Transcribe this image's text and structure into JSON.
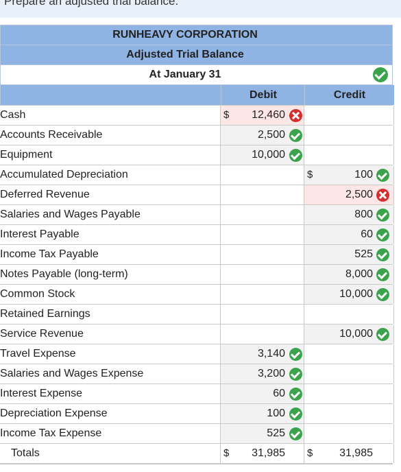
{
  "instruction": "Prepare an adjusted trial balance.",
  "header": {
    "company": "RUNHEAVY CORPORATION",
    "report": "Adjusted Trial Balance",
    "date": "At January 31"
  },
  "columns": {
    "debit": "Debit",
    "credit": "Credit"
  },
  "currency_symbol": "$",
  "rows": [
    {
      "account": "Cash",
      "debit": "12,460",
      "debit_status": "incorrect",
      "credit": "",
      "credit_status": ""
    },
    {
      "account": "Accounts Receivable",
      "debit": "2,500",
      "debit_status": "correct",
      "credit": "",
      "credit_status": ""
    },
    {
      "account": "Equipment",
      "debit": "10,000",
      "debit_status": "correct",
      "credit": "",
      "credit_status": ""
    },
    {
      "account": "Accumulated Depreciation",
      "debit": "",
      "debit_status": "",
      "credit": "100",
      "credit_status": "correct"
    },
    {
      "account": "Deferred Revenue",
      "debit": "",
      "debit_status": "",
      "credit": "2,500",
      "credit_status": "incorrect"
    },
    {
      "account": "Salaries and Wages Payable",
      "debit": "",
      "debit_status": "",
      "credit": "800",
      "credit_status": "correct"
    },
    {
      "account": "Interest Payable",
      "debit": "",
      "debit_status": "",
      "credit": "60",
      "credit_status": "correct"
    },
    {
      "account": "Income Tax Payable",
      "debit": "",
      "debit_status": "",
      "credit": "525",
      "credit_status": "correct"
    },
    {
      "account": "Notes Payable (long-term)",
      "debit": "",
      "debit_status": "",
      "credit": "8,000",
      "credit_status": "correct"
    },
    {
      "account": "Common Stock",
      "debit": "",
      "debit_status": "",
      "credit": "10,000",
      "credit_status": "correct"
    },
    {
      "account": "Retained Earnings",
      "debit": "",
      "debit_status": "",
      "credit": "",
      "credit_status": ""
    },
    {
      "account": "Service Revenue",
      "debit": "",
      "debit_status": "",
      "credit": "10,000",
      "credit_status": "correct"
    },
    {
      "account": "Travel Expense",
      "debit": "3,140",
      "debit_status": "correct",
      "credit": "",
      "credit_status": ""
    },
    {
      "account": "Salaries and Wages Expense",
      "debit": "3,200",
      "debit_status": "correct",
      "credit": "",
      "credit_status": ""
    },
    {
      "account": "Interest Expense",
      "debit": "60",
      "debit_status": "correct",
      "credit": "",
      "credit_status": ""
    },
    {
      "account": "Depreciation Expense",
      "debit": "100",
      "debit_status": "correct",
      "credit": "",
      "credit_status": ""
    },
    {
      "account": "Income Tax Expense",
      "debit": "525",
      "debit_status": "correct",
      "credit": "",
      "credit_status": ""
    }
  ],
  "totals": {
    "label": "Totals",
    "debit": "31,985",
    "credit": "31,985"
  },
  "status_colors": {
    "correct": "#3aa34b",
    "incorrect": "#d42f2f"
  }
}
